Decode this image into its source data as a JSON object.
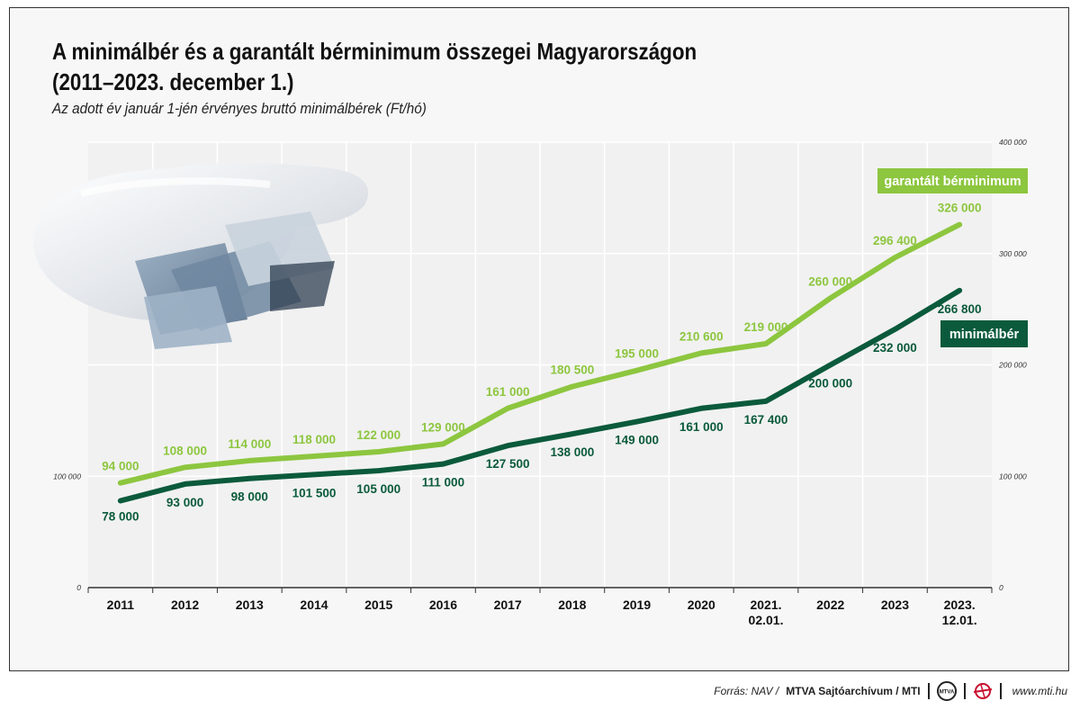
{
  "title_line1": "A minimálbér és a garantált bérminimum összegei Magyarországon",
  "title_line2": "(2011–2023. december 1.)",
  "subtitle": "Az adott év január 1-jén érvényes bruttó minimálbérek (Ft/hó)",
  "footer": {
    "source_label": "Forrás: NAV /",
    "source_names": "MTVA Sajtóarchívum / MTI",
    "logo1_text": "MTVA",
    "url": "www.mti.hu"
  },
  "colors": {
    "garantalt": "#8dc63f",
    "minimalber": "#0b5a3c",
    "background": "#f7f7f7",
    "grid": "#ffffff"
  },
  "chart_data": {
    "type": "line",
    "categories": [
      "2011",
      "2012",
      "2013",
      "2014",
      "2015",
      "2016",
      "2017",
      "2018",
      "2019",
      "2020",
      "2021. 02.01.",
      "2022",
      "2023",
      "2023. 12.01."
    ],
    "series": [
      {
        "name": "garantált bérminimum",
        "values": [
          94000,
          108000,
          114000,
          118000,
          122000,
          129000,
          161000,
          180500,
          195000,
          210600,
          219000,
          260000,
          296400,
          326000
        ],
        "labels": [
          "94 000",
          "108 000",
          "114 000",
          "118 000",
          "122 000",
          "129 000",
          "161 000",
          "180 500",
          "195 000",
          "210 600",
          "219 000",
          "260 000",
          "296 400",
          "326 000"
        ]
      },
      {
        "name": "minimálbér",
        "values": [
          78000,
          93000,
          98000,
          101500,
          105000,
          111000,
          127500,
          138000,
          149000,
          161000,
          167400,
          200000,
          232000,
          266800
        ],
        "labels": [
          "78 000",
          "93 000",
          "98 000",
          "101 500",
          "105 000",
          "111 000",
          "127 500",
          "138 000",
          "149 000",
          "161 000",
          "167 400",
          "200 000",
          "232 000",
          "266 800"
        ]
      }
    ],
    "left_ticks": [
      {
        "value": 0,
        "label": "0"
      },
      {
        "value": 100000,
        "label": "100 000"
      }
    ],
    "right_ticks": [
      {
        "value": 0,
        "label": "0"
      },
      {
        "value": 100000,
        "label": "100 000"
      },
      {
        "value": 200000,
        "label": "200 000"
      },
      {
        "value": 300000,
        "label": "300 000"
      },
      {
        "value": 400000,
        "label": "400 000"
      }
    ],
    "ylim": [
      0,
      400000
    ],
    "grid": true,
    "legend_placement": "right, next to line ends"
  }
}
